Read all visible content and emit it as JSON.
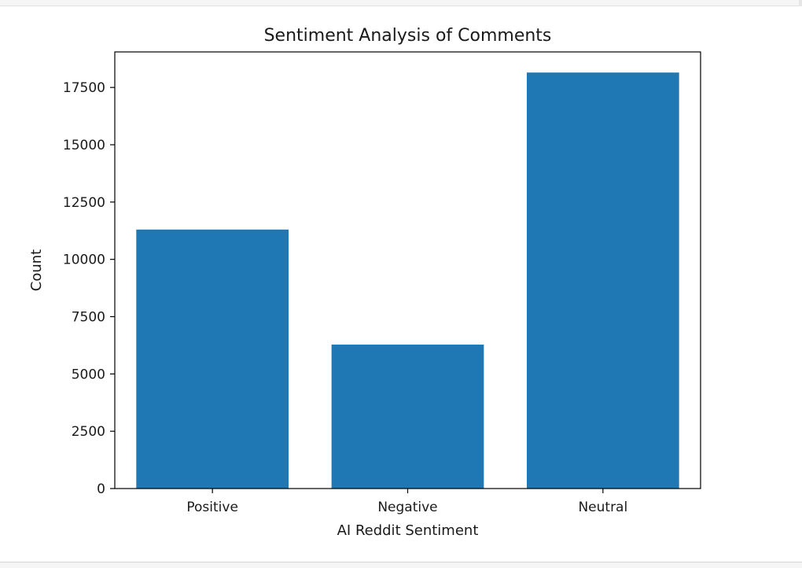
{
  "chart_data": {
    "type": "bar",
    "title": "Sentiment Analysis of Comments",
    "xlabel": "AI Reddit Sentiment",
    "ylabel": "Count",
    "categories": [
      "Positive",
      "Negative",
      "Neutral"
    ],
    "values": [
      11300,
      6280,
      18150
    ],
    "ylim": [
      0,
      19050
    ],
    "yticks": [
      0,
      2500,
      5000,
      7500,
      10000,
      12500,
      15000,
      17500
    ],
    "grid": false,
    "bar_color": "#1f77b4"
  }
}
